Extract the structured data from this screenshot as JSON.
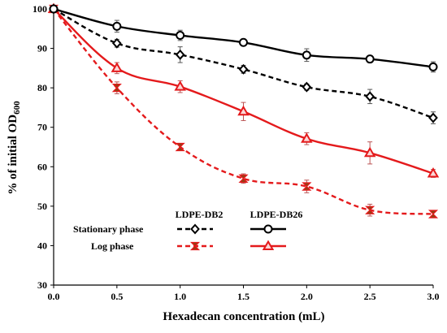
{
  "chart_data": {
    "type": "line",
    "xlabel": "Hexadecan concentration (mL)",
    "ylabel_main": "% of initial OD",
    "ylabel_sub": "600",
    "x": [
      0.0,
      0.5,
      1.0,
      1.5,
      2.0,
      2.5,
      3.0
    ],
    "x_tick_labels": [
      "0.0",
      "0.5",
      "1.0",
      "1.5",
      "2.0",
      "2.5",
      "3.0"
    ],
    "y_ticks": [
      30,
      40,
      50,
      60,
      70,
      80,
      90,
      100
    ],
    "xlim": [
      0,
      3
    ],
    "ylim": [
      30,
      100
    ],
    "grid": false,
    "legend": {
      "column_headers": [
        "LDPE-DB2",
        "LDPE-DB26"
      ],
      "row_labels": [
        "Stationary phase",
        "Log phase"
      ]
    },
    "series": [
      {
        "key": "db26_stat",
        "values": [
          100,
          95.6,
          93.3,
          91.5,
          88.3,
          87.3,
          85.3
        ],
        "errors": [
          0,
          1.5,
          1.3,
          0.8,
          1.6,
          0.7,
          1.3
        ],
        "color": "#000000",
        "dashed": false,
        "marker": "circle"
      },
      {
        "key": "db2_stat",
        "values": [
          100,
          91.3,
          88.4,
          84.7,
          80.2,
          77.8,
          72.4
        ],
        "errors": [
          0,
          1.0,
          2.0,
          1.0,
          0.8,
          1.8,
          1.5
        ],
        "color": "#000000",
        "dashed": true,
        "marker": "diamond"
      },
      {
        "key": "db26_log",
        "values": [
          100,
          85.0,
          80.3,
          74.0,
          67.1,
          63.5,
          58.3
        ],
        "errors": [
          0,
          1.4,
          1.5,
          2.3,
          1.5,
          2.8,
          1.0
        ],
        "color": "#e41a1c",
        "dashed": false,
        "marker": "triangle"
      },
      {
        "key": "db2_log",
        "values": [
          100,
          80.0,
          65.0,
          57.0,
          55.0,
          49.0,
          48.0
        ],
        "errors": [
          0,
          1.5,
          0.8,
          1.2,
          1.6,
          1.5,
          0.6
        ],
        "color": "#e41a1c",
        "dashed": true,
        "marker": "xstar"
      }
    ]
  }
}
